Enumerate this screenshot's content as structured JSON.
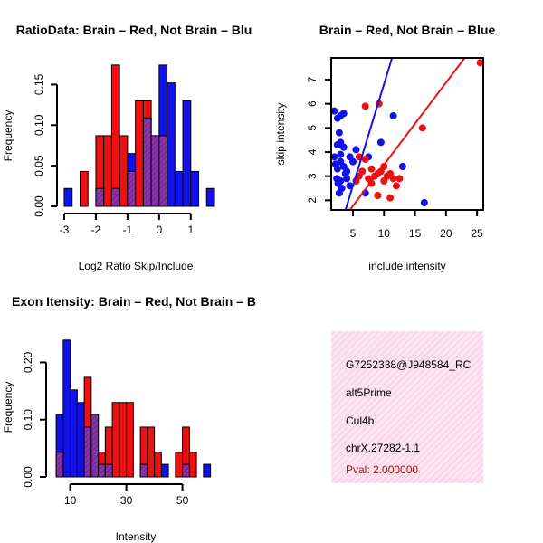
{
  "colors": {
    "red": "#ee1111",
    "blue": "#1111ee",
    "overlap": "#8833aa",
    "info_bg": "#f7d3e6",
    "pval": "#b01010"
  },
  "chart_data": [
    {
      "type": "bar",
      "title": "RatioData: Brain – Red, Not Brain – Blu",
      "xlabel": "Log2 Ratio Skip/Include",
      "ylabel": "Frequency",
      "xlim": [
        -3.0,
        1.75
      ],
      "ylim": [
        0,
        0.175
      ],
      "bin_width": 0.25,
      "x_ticks": [
        "-3",
        "-2",
        "-1",
        "0",
        "1"
      ],
      "y_ticks": [
        "0.00",
        "0.05",
        "0.10",
        "0.15"
      ],
      "bins": [
        {
          "x0": -3.0,
          "red": 0,
          "blue": 0.022
        },
        {
          "x0": -2.75,
          "red": 0,
          "blue": 0
        },
        {
          "x0": -2.5,
          "red": 0.043,
          "blue": 0
        },
        {
          "x0": -2.25,
          "red": 0,
          "blue": 0
        },
        {
          "x0": -2.0,
          "red": 0.087,
          "blue": 0.022
        },
        {
          "x0": -1.75,
          "red": 0.087,
          "blue": 0
        },
        {
          "x0": -1.5,
          "red": 0.174,
          "blue": 0.022
        },
        {
          "x0": -1.25,
          "red": 0.087,
          "blue": 0
        },
        {
          "x0": -1.0,
          "red": 0.043,
          "blue": 0.065
        },
        {
          "x0": -0.75,
          "red": 0.13,
          "blue": 0
        },
        {
          "x0": -0.5,
          "red": 0.13,
          "blue": 0.109
        },
        {
          "x0": -0.25,
          "red": 0.087,
          "blue": 0.087
        },
        {
          "x0": 0.0,
          "red": 0.087,
          "blue": 0.174
        },
        {
          "x0": 0.25,
          "red": 0,
          "blue": 0.152
        },
        {
          "x0": 0.5,
          "red": 0,
          "blue": 0.043
        },
        {
          "x0": 0.75,
          "red": 0,
          "blue": 0.13
        },
        {
          "x0": 1.0,
          "red": 0,
          "blue": 0.043
        },
        {
          "x0": 1.25,
          "red": 0,
          "blue": 0
        },
        {
          "x0": 1.5,
          "red": 0,
          "blue": 0.022
        }
      ]
    },
    {
      "type": "scatter",
      "title": "Brain – Red, Not Brain – Blue",
      "xlabel": "include intensity",
      "ylabel": "skip intensity",
      "xlim": [
        1.5,
        26
      ],
      "ylim": [
        1.6,
        7.9
      ],
      "x_ticks": [
        "5",
        "10",
        "15",
        "20",
        "25"
      ],
      "y_ticks": [
        "2",
        "3",
        "4",
        "5",
        "6",
        "7"
      ],
      "red_points": [
        [
          25.5,
          7.7
        ],
        [
          16.2,
          5.0
        ],
        [
          7.0,
          5.9
        ],
        [
          9.2,
          6.0
        ],
        [
          6.0,
          3.8
        ],
        [
          7.0,
          3.7
        ],
        [
          8.0,
          3.3
        ],
        [
          8.5,
          3.0
        ],
        [
          9.0,
          3.1
        ],
        [
          9.5,
          3.2
        ],
        [
          10.0,
          3.4
        ],
        [
          10.5,
          3.0
        ],
        [
          11.0,
          3.1
        ],
        [
          11.5,
          2.9
        ],
        [
          12.0,
          2.6
        ],
        [
          11.0,
          2.1
        ],
        [
          6.0,
          3.0
        ],
        [
          5.5,
          2.8
        ],
        [
          7.5,
          2.9
        ],
        [
          8.0,
          2.7
        ],
        [
          12.5,
          2.9
        ],
        [
          9.0,
          2.2
        ],
        [
          10.0,
          2.8
        ],
        [
          6.5,
          3.2
        ]
      ],
      "blue_points": [
        [
          2.0,
          5.7
        ],
        [
          2.5,
          5.4
        ],
        [
          3.0,
          5.5
        ],
        [
          3.5,
          5.6
        ],
        [
          2.8,
          4.8
        ],
        [
          3.0,
          4.4
        ],
        [
          2.5,
          4.3
        ],
        [
          3.5,
          4.2
        ],
        [
          2.0,
          3.8
        ],
        [
          2.2,
          3.5
        ],
        [
          2.5,
          3.3
        ],
        [
          3.0,
          3.6
        ],
        [
          3.5,
          3.4
        ],
        [
          4.0,
          3.2
        ],
        [
          4.5,
          3.8
        ],
        [
          5.0,
          3.6
        ],
        [
          2.4,
          2.9
        ],
        [
          2.6,
          2.7
        ],
        [
          3.0,
          2.8
        ],
        [
          3.2,
          2.5
        ],
        [
          2.8,
          2.3
        ],
        [
          4.0,
          2.9
        ],
        [
          5.5,
          4.1
        ],
        [
          7.5,
          3.8
        ],
        [
          9.5,
          4.4
        ],
        [
          11.5,
          5.5
        ],
        [
          13.0,
          3.4
        ],
        [
          16.5,
          1.9
        ],
        [
          3.0,
          3.9
        ],
        [
          4.5,
          2.6
        ],
        [
          7.0,
          2.3
        ],
        [
          3.8,
          3.1
        ]
      ],
      "red_fit": [
        [
          4.5,
          1.6
        ],
        [
          23.0,
          7.9
        ]
      ],
      "blue_fit": [
        [
          3.8,
          1.6
        ],
        [
          11.3,
          7.9
        ]
      ]
    },
    {
      "type": "bar",
      "title": "Exon Itensity: Brain – Red, Not Brain – B",
      "xlabel": "Intensity",
      "ylabel": "Frequency",
      "xlim": [
        4,
        64
      ],
      "ylim": [
        0,
        0.245
      ],
      "bin_width": 2.5,
      "x_ticks": [
        "10",
        "30",
        "50"
      ],
      "y_ticks": [
        "0.00",
        "0.10",
        "0.20"
      ],
      "bins": [
        {
          "x0": 5.0,
          "red": 0.043,
          "blue": 0.109
        },
        {
          "x0": 7.5,
          "red": 0,
          "blue": 0.239
        },
        {
          "x0": 10.0,
          "red": 0,
          "blue": 0.152
        },
        {
          "x0": 12.5,
          "red": 0,
          "blue": 0.13
        },
        {
          "x0": 15.0,
          "red": 0.174,
          "blue": 0.087
        },
        {
          "x0": 17.5,
          "red": 0.109,
          "blue": 0.109
        },
        {
          "x0": 20.0,
          "red": 0.043,
          "blue": 0.022
        },
        {
          "x0": 22.5,
          "red": 0.087,
          "blue": 0.022
        },
        {
          "x0": 25.0,
          "red": 0.13,
          "blue": 0
        },
        {
          "x0": 27.5,
          "red": 0.13,
          "blue": 0
        },
        {
          "x0": 30.0,
          "red": 0.13,
          "blue": 0
        },
        {
          "x0": 32.5,
          "red": 0,
          "blue": 0
        },
        {
          "x0": 35.0,
          "red": 0.087,
          "blue": 0.022
        },
        {
          "x0": 37.5,
          "red": 0.087,
          "blue": 0
        },
        {
          "x0": 40.0,
          "red": 0.043,
          "blue": 0
        },
        {
          "x0": 42.5,
          "red": 0,
          "blue": 0.022
        },
        {
          "x0": 45.0,
          "red": 0,
          "blue": 0
        },
        {
          "x0": 47.5,
          "red": 0.043,
          "blue": 0
        },
        {
          "x0": 50.0,
          "red": 0.087,
          "blue": 0.022
        },
        {
          "x0": 52.5,
          "red": 0.043,
          "blue": 0
        },
        {
          "x0": 55.0,
          "red": 0,
          "blue": 0
        },
        {
          "x0": 57.5,
          "red": 0,
          "blue": 0.022
        }
      ]
    }
  ],
  "info_panel": {
    "probe": "G7252338@J948584_RC",
    "event": "alt5Prime",
    "gene": "Cul4b",
    "location": "chrX.27282-1.1",
    "pval": "Pval: 2.000000"
  }
}
